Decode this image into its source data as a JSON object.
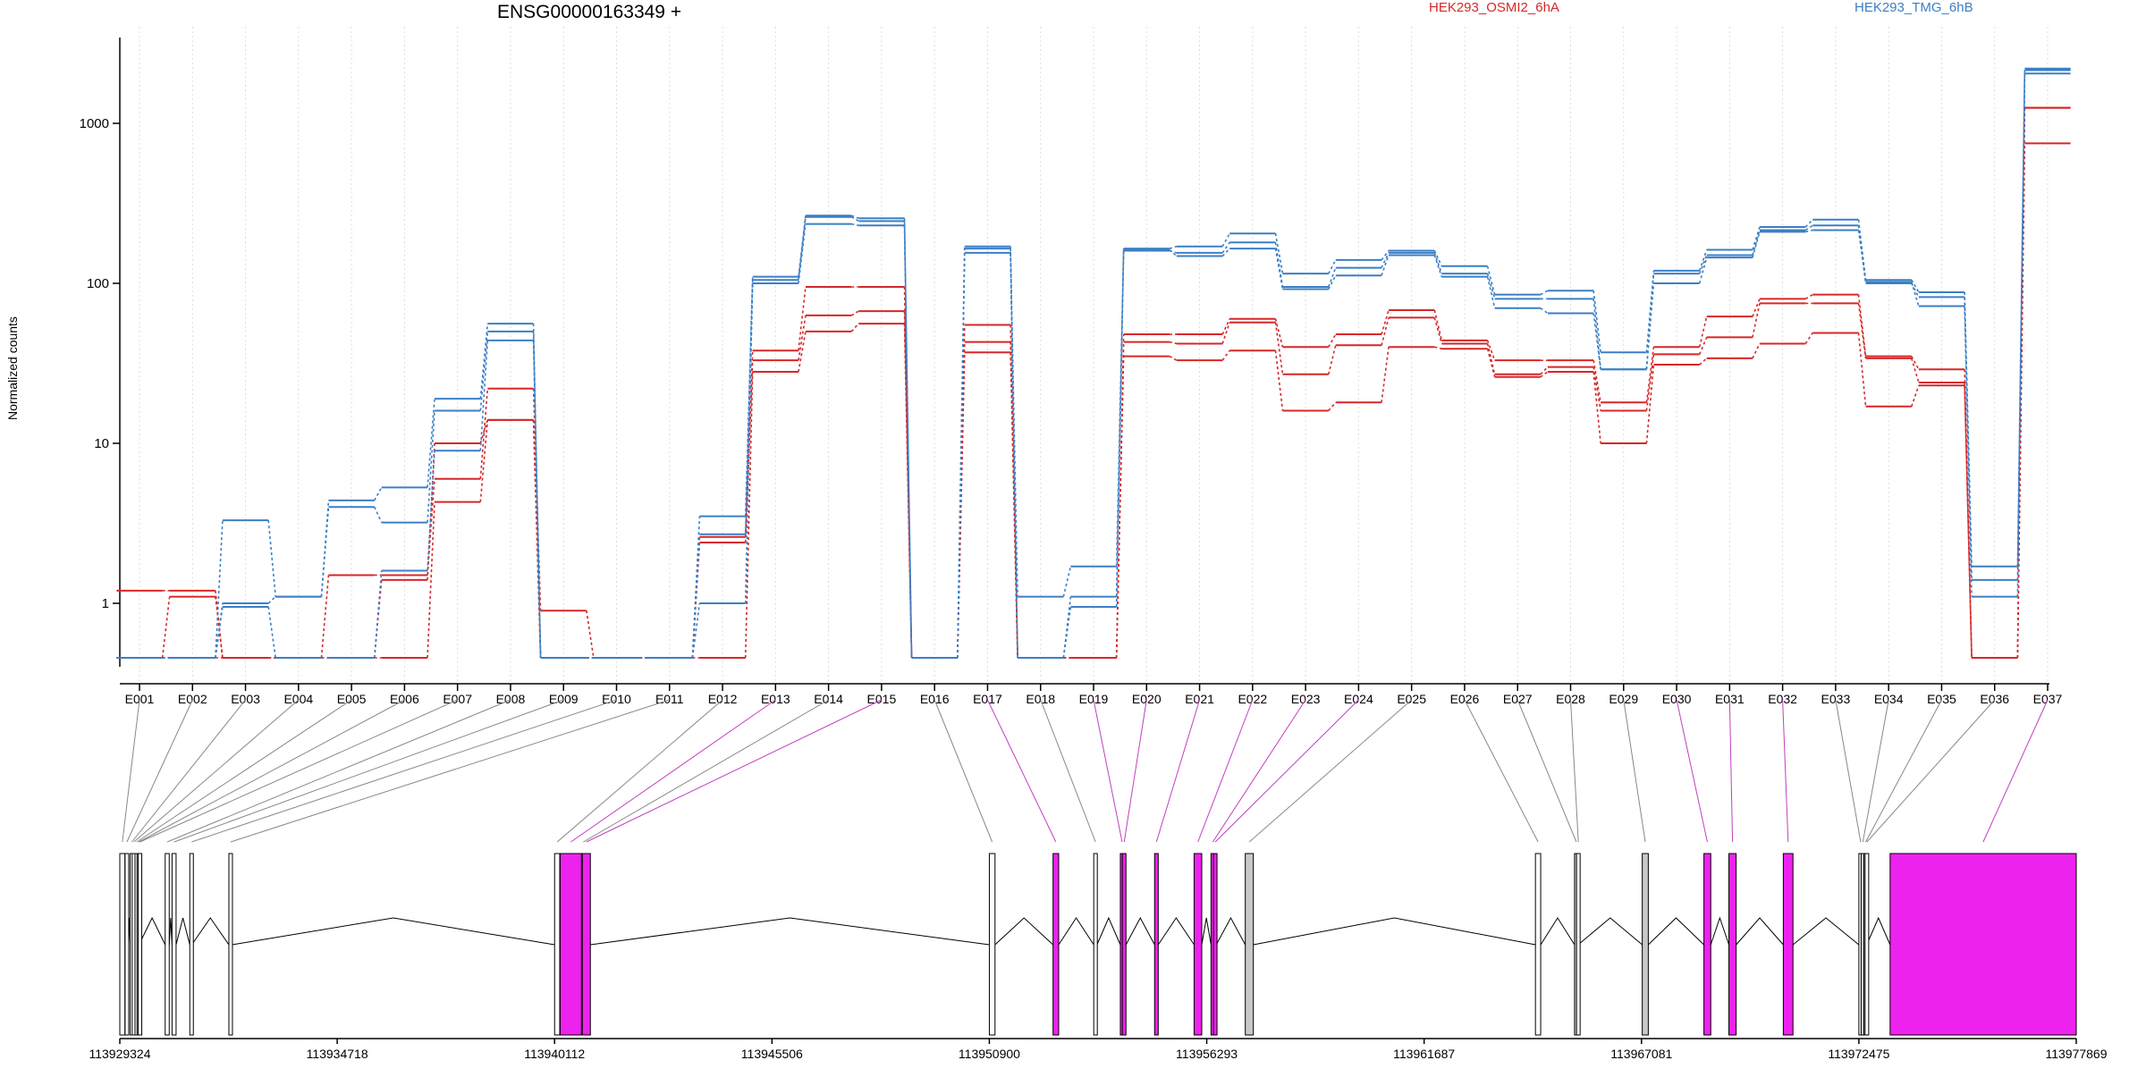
{
  "title": "ENSG00000163349 +",
  "ylabel": "Normalized counts",
  "colors": {
    "sample_a": "#d62728",
    "sample_b": "#3b7fc4",
    "highlight_exon": "#ee22ee",
    "plain_exon": "#ffffff",
    "grey_exon": "#c8c8c8"
  },
  "chart_data": {
    "type": "line",
    "title": "ENSG00000163349 +",
    "ylabel": "Normalized counts",
    "yscale": "log",
    "ylim": [
      0.5,
      3000
    ],
    "yticks": [
      1,
      10,
      100,
      1000
    ],
    "ytick_labels": [
      "1",
      "10",
      "100",
      "1000"
    ],
    "grid": "vertical dotted lines at exon centers",
    "legend": "top",
    "categories": [
      "E001",
      "E002",
      "E003",
      "E004",
      "E005",
      "E006",
      "E007",
      "E008",
      "E009",
      "E010",
      "E011",
      "E012",
      "E013",
      "E014",
      "E015",
      "E016",
      "E017",
      "E018",
      "E019",
      "E020",
      "E021",
      "E022",
      "E023",
      "E024",
      "E025",
      "E026",
      "E027",
      "E028",
      "E029",
      "E030",
      "E031",
      "E032",
      "E033",
      "E034",
      "E035",
      "E036",
      "E037"
    ],
    "groups": [
      {
        "name": "HEK293_OSMI2_6hA",
        "color": "#d62728"
      },
      {
        "name": "HEK293_TMG_6hB",
        "color": "#3b7fc4"
      }
    ],
    "series": [
      {
        "group": "HEK293_OSMI2_6hA",
        "values": [
          1.2,
          1.2,
          0.5,
          0.5,
          1.5,
          1.5,
          6,
          22,
          0.9,
          0.5,
          0.5,
          2.6,
          38,
          95,
          95,
          0.5,
          55,
          0.5,
          0.5,
          48,
          48,
          60,
          40,
          48,
          68,
          44,
          33,
          33,
          18,
          40,
          62,
          80,
          85,
          35,
          29,
          0.5,
          1250
        ]
      },
      {
        "group": "HEK293_OSMI2_6hA",
        "values": [
          0.5,
          1.1,
          0.5,
          0.5,
          0.5,
          1.4,
          10,
          14,
          0.5,
          0.5,
          0.5,
          2.4,
          33,
          63,
          67,
          0.5,
          43,
          0.5,
          0.5,
          43,
          42,
          57,
          27,
          41,
          61,
          42,
          27,
          30,
          16,
          36,
          46,
          75,
          75,
          34,
          24,
          0.5,
          1250
        ]
      },
      {
        "group": "HEK293_OSMI2_6hA",
        "values": [
          0.5,
          0.5,
          0.5,
          0.5,
          0.5,
          0.5,
          4.3,
          14,
          0.5,
          0.5,
          0.5,
          0.5,
          28,
          50,
          56,
          0.5,
          37,
          0.5,
          0.5,
          35,
          33,
          38,
          16,
          18,
          40,
          39,
          26,
          28,
          10,
          31,
          34,
          42,
          49,
          17,
          23,
          0.5,
          750
        ]
      },
      {
        "group": "HEK293_TMG_6hB",
        "values": [
          0.5,
          0.5,
          3.3,
          1.1,
          4.4,
          5.3,
          19,
          56,
          0.5,
          0.5,
          0.5,
          3.5,
          110,
          265,
          255,
          0.5,
          170,
          1.1,
          1.7,
          165,
          170,
          205,
          115,
          140,
          160,
          128,
          85,
          90,
          37,
          120,
          162,
          225,
          250,
          105,
          88,
          1.7,
          2200
        ]
      },
      {
        "group": "HEK293_TMG_6hB",
        "values": [
          0.5,
          0.5,
          1.0,
          1.1,
          4.0,
          3.2,
          16,
          50,
          0.5,
          0.5,
          0.5,
          2.7,
          105,
          260,
          245,
          0.5,
          165,
          0.5,
          1.1,
          160,
          155,
          180,
          95,
          125,
          155,
          115,
          80,
          80,
          29,
          115,
          150,
          215,
          230,
          100,
          82,
          1.4,
          2150
        ]
      },
      {
        "group": "HEK293_TMG_6hB",
        "values": [
          0.5,
          0.5,
          0.95,
          0.5,
          0.5,
          1.6,
          9,
          44,
          0.5,
          0.5,
          0.5,
          1.0,
          100,
          235,
          230,
          0.5,
          155,
          0.5,
          0.95,
          162,
          148,
          165,
          92,
          112,
          150,
          110,
          70,
          65,
          29,
          100,
          145,
          210,
          215,
          102,
          72,
          1.1,
          2050
        ]
      }
    ],
    "genomic_axis": {
      "tick_labels": [
        "113929324",
        "113934718",
        "113940112",
        "113945506",
        "113950900",
        "113956293",
        "113961687",
        "113967081",
        "113972475",
        "113977869"
      ]
    },
    "gene_model": {
      "exons": [
        {
          "id": "E001",
          "start": 113929324,
          "end": 113929450,
          "fill": "plain"
        },
        {
          "id": "E002",
          "start": 113929455,
          "end": 113929530,
          "fill": "plain"
        },
        {
          "id": "E003",
          "start": 113929580,
          "end": 113929600,
          "fill": "plain"
        },
        {
          "id": "E004",
          "start": 113929630,
          "end": 113929650,
          "fill": "plain"
        },
        {
          "id": "E005",
          "start": 113929700,
          "end": 113929725,
          "fill": "plain"
        },
        {
          "id": "E006",
          "start": 113929750,
          "end": 113929775,
          "fill": "plain"
        },
        {
          "id": "E007",
          "start": 113929780,
          "end": 113929800,
          "fill": "plain"
        },
        {
          "id": "E008",
          "start": 113930450,
          "end": 113930550,
          "fill": "plain"
        },
        {
          "id": "E009",
          "start": 113930620,
          "end": 113930720,
          "fill": "plain"
        },
        {
          "id": "E010",
          "start": 113931060,
          "end": 113931110,
          "fill": "plain"
        },
        {
          "id": "E011",
          "start": 113932030,
          "end": 113932110,
          "fill": "plain"
        },
        {
          "id": "E012",
          "start": 113940112,
          "end": 113940240,
          "fill": "plain"
        },
        {
          "id": "E013",
          "start": 113940250,
          "end": 113940780,
          "fill": "magenta"
        },
        {
          "id": "E014",
          "start": 113940780,
          "end": 113940800,
          "fill": "grey"
        },
        {
          "id": "E015",
          "start": 113940800,
          "end": 113941000,
          "fill": "magenta"
        },
        {
          "id": "E016",
          "start": 113950900,
          "end": 113951040,
          "fill": "plain"
        },
        {
          "id": "E017",
          "start": 113952480,
          "end": 113952620,
          "fill": "magenta"
        },
        {
          "id": "E018",
          "start": 113953490,
          "end": 113953570,
          "fill": "plain"
        },
        {
          "id": "E019",
          "start": 113954150,
          "end": 113954200,
          "fill": "magenta"
        },
        {
          "id": "E020",
          "start": 113954200,
          "end": 113954290,
          "fill": "magenta"
        },
        {
          "id": "E021",
          "start": 113955000,
          "end": 113955090,
          "fill": "magenta"
        },
        {
          "id": "E022",
          "start": 113955980,
          "end": 113956170,
          "fill": "magenta"
        },
        {
          "id": "E023",
          "start": 113956400,
          "end": 113956460,
          "fill": "magenta"
        },
        {
          "id": "E024",
          "start": 113956460,
          "end": 113956530,
          "fill": "magenta"
        },
        {
          "id": "E025",
          "start": 113957250,
          "end": 113957450,
          "fill": "grey"
        },
        {
          "id": "E026",
          "start": 113964450,
          "end": 113964580,
          "fill": "plain"
        },
        {
          "id": "E027",
          "start": 113965420,
          "end": 113965470,
          "fill": "grey"
        },
        {
          "id": "E028",
          "start": 113965470,
          "end": 113965510,
          "fill": "plain"
        },
        {
          "id": "E029",
          "start": 113967100,
          "end": 113967250,
          "fill": "grey"
        },
        {
          "id": "E030",
          "start": 113968630,
          "end": 113968800,
          "fill": "magenta"
        },
        {
          "id": "E031",
          "start": 113969250,
          "end": 113969430,
          "fill": "magenta"
        },
        {
          "id": "E032",
          "start": 113970600,
          "end": 113970840,
          "fill": "magenta"
        },
        {
          "id": "E033",
          "start": 113972475,
          "end": 113972530,
          "fill": "plain"
        },
        {
          "id": "E034",
          "start": 113972530,
          "end": 113972600,
          "fill": "grey"
        },
        {
          "id": "E035",
          "start": 113972600,
          "end": 113972630,
          "fill": "plain"
        },
        {
          "id": "E036",
          "start": 113972630,
          "end": 113972670,
          "fill": "plain"
        },
        {
          "id": "E037",
          "start": 113973250,
          "end": 113977869,
          "fill": "magenta"
        }
      ]
    }
  }
}
